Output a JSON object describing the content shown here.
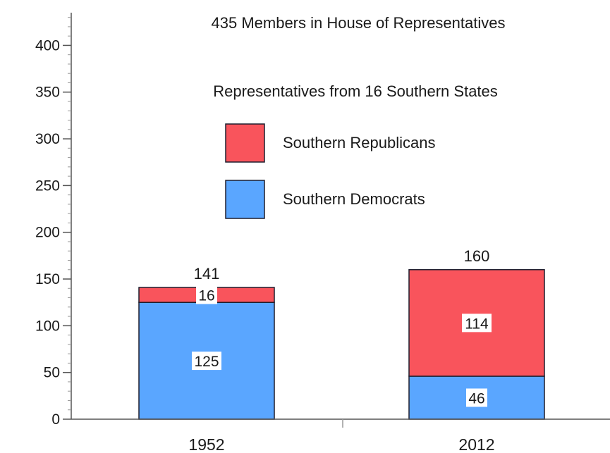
{
  "chart_data": {
    "type": "bar",
    "stacked": true,
    "title": "435 Members in House of Representatives",
    "subtitle": "Representatives from 16 Southern States",
    "categories": [
      "1952",
      "2012"
    ],
    "series": [
      {
        "name": "Southern Democrats",
        "values": [
          125,
          46
        ],
        "color": "#5aa6ff"
      },
      {
        "name": "Southern Republicans",
        "values": [
          16,
          114
        ],
        "color": "#f9545c"
      }
    ],
    "totals": [
      141,
      160
    ],
    "ylim": [
      0,
      435
    ],
    "yticks": [
      0,
      50,
      100,
      150,
      200,
      250,
      300,
      350,
      400
    ],
    "yminor_step": 10,
    "legend": "top-center",
    "legend_order": [
      1,
      0
    ],
    "grid": false,
    "xlabel": "",
    "ylabel": ""
  }
}
